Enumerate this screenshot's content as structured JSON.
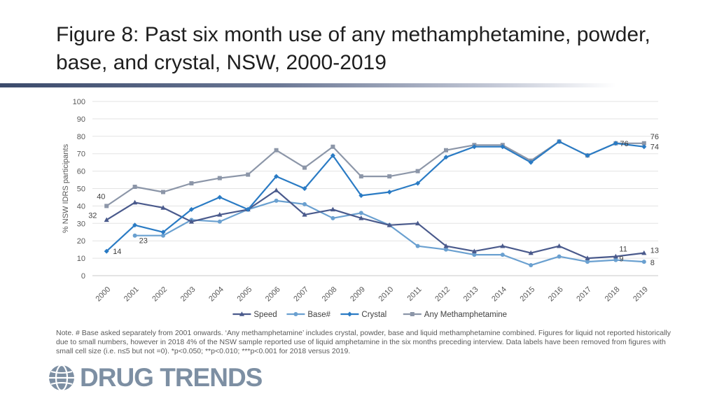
{
  "title": "Figure 8: Past six month use of any methamphetamine, powder, base, and crystal, NSW, 2000-2019",
  "note": "Note. # Base asked separately from 2001 onwards. ‘Any methamphetamine’ includes crystal, powder, base and liquid methamphetamine combined. Figures for liquid not reported historically due to small numbers, however in 2018 4% of the NSW sample reported use of liquid amphetamine in the six months preceding interview. Data labels have been removed from figures with small cell size (i.e. n≤5 but not =0).  *p<0.050; **p<0.010; ***p<0.001 for 2018 versus 2019.",
  "logo": {
    "text": "DRUG TRENDS",
    "icon": "globe-icon",
    "color": "#7d8fa3"
  },
  "chart_data": {
    "type": "line",
    "categories": [
      "2000",
      "2001",
      "2002",
      "2003",
      "2004",
      "2005",
      "2006",
      "2007",
      "2008",
      "2009",
      "2010",
      "2011",
      "2012",
      "2013",
      "2014",
      "2015",
      "2016",
      "2017",
      "2018",
      "2019"
    ],
    "ylabel": "% NSW IDRS participants",
    "ylim": [
      0,
      100
    ],
    "yticks": [
      0,
      10,
      20,
      30,
      40,
      50,
      60,
      70,
      80,
      90,
      100
    ],
    "grid": true,
    "legend": "bottom",
    "series": [
      {
        "name": "Speed",
        "color": "#4a5a8c",
        "marker": "triangle",
        "values": [
          32,
          42,
          39,
          31,
          35,
          38,
          49,
          35,
          38,
          33,
          29,
          30,
          17,
          14,
          17,
          13,
          17,
          10,
          11,
          13
        ]
      },
      {
        "name": "Base#",
        "color": "#6aa0d0",
        "marker": "circle",
        "values": [
          null,
          23,
          23,
          32,
          31,
          38,
          43,
          41,
          33,
          36,
          29,
          17,
          15,
          12,
          12,
          6,
          11,
          8,
          9,
          8
        ]
      },
      {
        "name": "Crystal",
        "color": "#2a7bc4",
        "marker": "diamond",
        "values": [
          14,
          29,
          25,
          38,
          45,
          38,
          57,
          50,
          69,
          46,
          48,
          53,
          68,
          74,
          74,
          65,
          77,
          69,
          76,
          74
        ]
      },
      {
        "name": "Any Methamphetamine",
        "color": "#8c96a8",
        "marker": "square",
        "values": [
          40,
          51,
          48,
          53,
          56,
          58,
          72,
          62,
          74,
          57,
          57,
          60,
          72,
          75,
          75,
          66,
          77,
          69,
          76,
          76
        ]
      }
    ],
    "data_labels": [
      {
        "series": "Any Methamphetamine",
        "x": "2000",
        "text": "40"
      },
      {
        "series": "Speed",
        "x": "2000",
        "text": "32"
      },
      {
        "series": "Base#",
        "x": "2001",
        "text": "23"
      },
      {
        "series": "Crystal",
        "x": "2000",
        "text": "14"
      },
      {
        "series": "Any Methamphetamine",
        "x": "2018",
        "text": "76"
      },
      {
        "series": "Speed",
        "x": "2018",
        "text": "11"
      },
      {
        "series": "Base#",
        "x": "2018",
        "text": "9"
      },
      {
        "series": "Any Methamphetamine",
        "x": "2019",
        "text": "76"
      },
      {
        "series": "Crystal",
        "x": "2019",
        "text": "74"
      },
      {
        "series": "Speed",
        "x": "2019",
        "text": "13"
      },
      {
        "series": "Base#",
        "x": "2019",
        "text": "8"
      }
    ]
  }
}
